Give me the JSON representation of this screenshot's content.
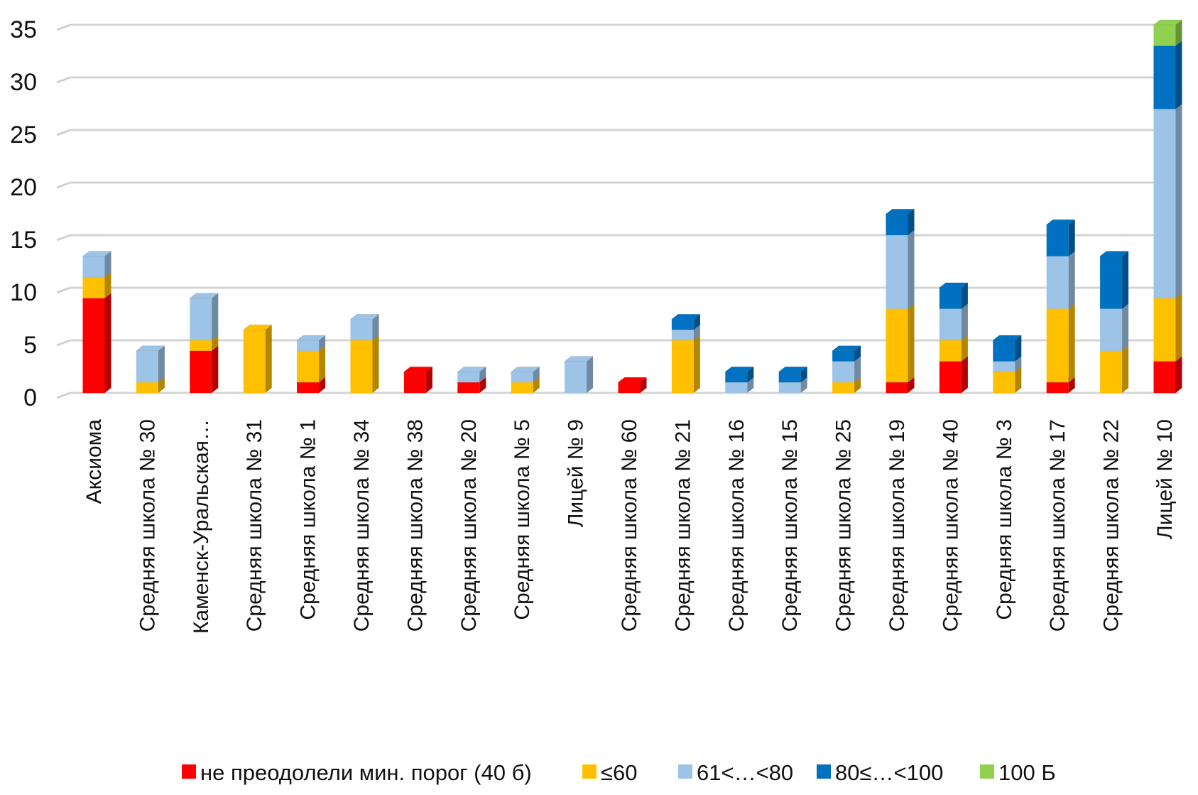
{
  "chart_data": {
    "type": "bar",
    "stacked": true,
    "three_d": true,
    "title": "",
    "xlabel": "",
    "ylabel": "",
    "ylim": [
      0,
      35
    ],
    "yticks": [
      0,
      5,
      10,
      15,
      20,
      25,
      30,
      35
    ],
    "grid": true,
    "legend_position": "bottom",
    "categories": [
      "Аксиома",
      "Средняя школа № 30",
      "Каменск-Уральская…",
      "Средняя школа № 31",
      "Средняя школа № 1",
      "Средняя школа № 34",
      "Средняя школа № 38",
      "Средняя школа № 20",
      "Средняя школа № 5",
      "Лицей  № 9",
      "Средняя школа № 60",
      "Средняя школа № 21",
      "Средняя школа № 16",
      "Средняя школа № 15",
      "Средняя школа № 25",
      "Средняя школа № 19",
      "Средняя школа № 40",
      "Средняя школа № 3",
      "Средняя школа № 17",
      "Средняя школа № 22",
      "Лицей  № 10"
    ],
    "series": [
      {
        "name": "не преодолели мин. порог (40 б)",
        "color": "#ff0000",
        "side": "#b30000",
        "values": [
          9,
          0,
          4,
          0,
          1,
          0,
          2,
          1,
          0,
          0,
          1,
          0,
          0,
          0,
          0,
          1,
          3,
          0,
          1,
          0,
          3
        ]
      },
      {
        "name": "≤60",
        "color": "#ffc000",
        "side": "#b38600",
        "values": [
          2,
          1,
          1,
          6,
          3,
          5,
          0,
          0,
          1,
          0,
          0,
          5,
          0,
          0,
          1,
          7,
          2,
          2,
          7,
          4,
          6
        ]
      },
      {
        "name": "61<…<80",
        "color": "#9dc3e6",
        "side": "#6e89a1",
        "values": [
          2,
          3,
          4,
          0,
          1,
          2,
          0,
          1,
          1,
          3,
          0,
          1,
          1,
          1,
          2,
          7,
          3,
          1,
          5,
          4,
          18
        ]
      },
      {
        "name": "80≤…<100",
        "color": "#0070c0",
        "side": "#004e86",
        "values": [
          0,
          0,
          0,
          0,
          0,
          0,
          0,
          0,
          0,
          0,
          0,
          1,
          1,
          1,
          1,
          2,
          2,
          2,
          3,
          5,
          6
        ]
      },
      {
        "name": "100 Б",
        "color": "#92d050",
        "side": "#669238",
        "values": [
          0,
          0,
          0,
          0,
          0,
          0,
          0,
          0,
          0,
          0,
          0,
          0,
          0,
          0,
          0,
          0,
          0,
          0,
          0,
          0,
          2
        ]
      }
    ]
  }
}
